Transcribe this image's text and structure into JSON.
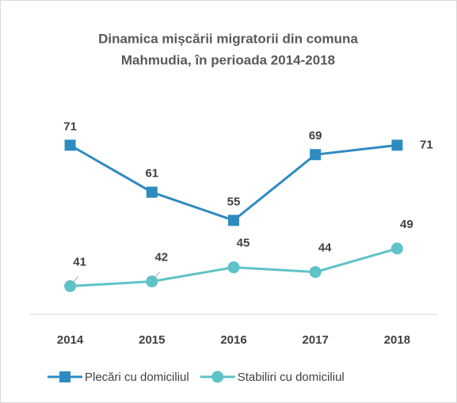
{
  "chart_data": {
    "type": "line",
    "title": [
      "Dinamica mișcării migratorii din comuna",
      "Mahmudia, în perioada 2014-2018"
    ],
    "categories": [
      "2014",
      "2015",
      "2016",
      "2017",
      "2018"
    ],
    "series": [
      {
        "name": "Plecări cu domiciliul",
        "color": "#2e8bc0",
        "marker": "square",
        "values": [
          71,
          61,
          55,
          69,
          71
        ]
      },
      {
        "name": "Stabiliri cu domiciliul",
        "color": "#5ec3c7",
        "marker": "circle",
        "values": [
          41,
          42,
          45,
          44,
          49
        ]
      }
    ],
    "ylim": [
      35,
      80
    ],
    "legend": "bottom"
  }
}
